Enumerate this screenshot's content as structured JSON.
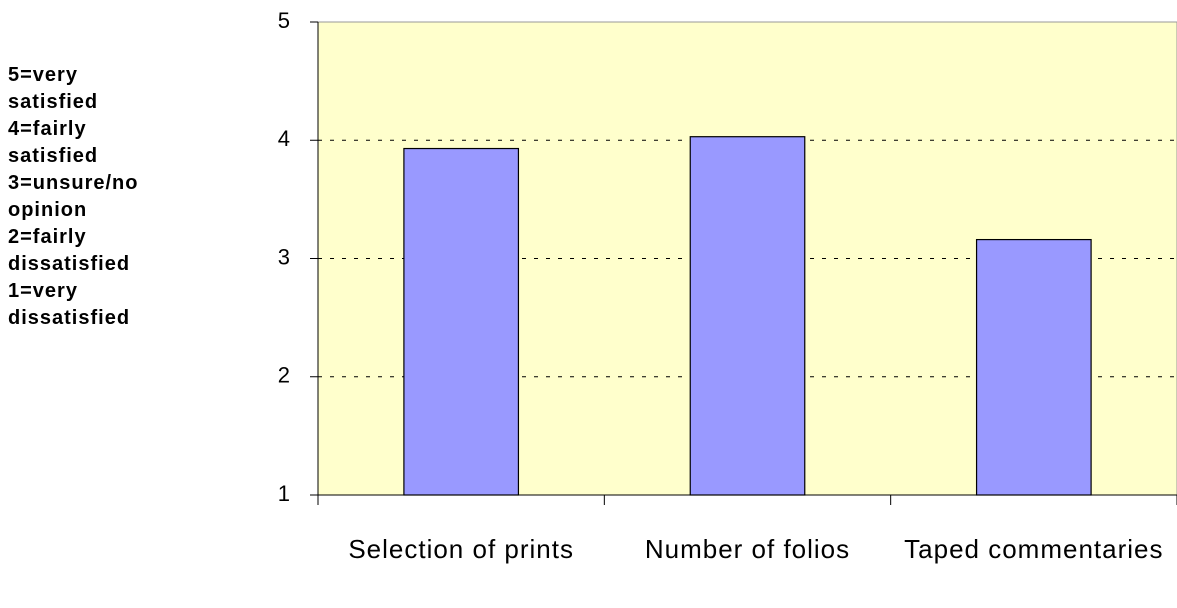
{
  "chart_data": {
    "type": "bar",
    "annotations": [
      "5=very satisfied",
      "4=fairly satisfied",
      "3=unsure/no opinion",
      "2=fairly dissatisfied",
      "1=very dissatisfied"
    ],
    "categories": [
      "Selection of prints",
      "Number of folios",
      "Taped commentaries"
    ],
    "values": [
      3.93,
      4.03,
      3.16
    ],
    "color": "#9999ff",
    "ylim": [
      1,
      5
    ],
    "yticks": [
      1,
      2,
      3,
      4,
      5
    ],
    "grid": true
  }
}
